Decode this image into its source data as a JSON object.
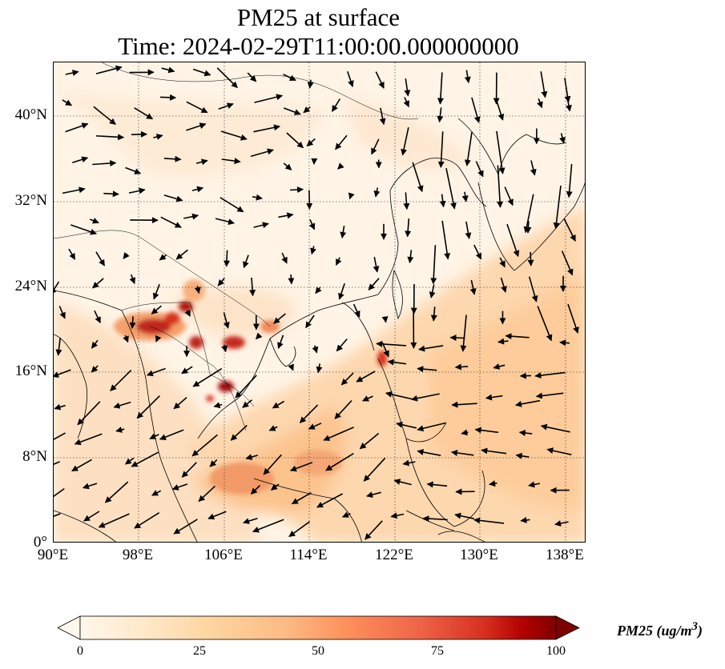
{
  "title": {
    "line1": "PM25 at surface",
    "line2": "Time: 2024-02-29T11:00:00.000000000"
  },
  "map": {
    "projection": "PlateCarree",
    "lon_range": [
      90,
      140
    ],
    "lat_range": [
      0,
      45
    ],
    "gridlines": "dotted",
    "x_ticks": [
      "90°E",
      "98°E",
      "106°E",
      "114°E",
      "122°E",
      "130°E",
      "138°E"
    ],
    "y_ticks": [
      "0°",
      "8°N",
      "16°N",
      "24°N",
      "32°N",
      "40°N"
    ],
    "field": "PM25",
    "vectors": "surface wind arrows",
    "colormap": "OrRd",
    "colors": {
      "low": "#fff7ec",
      "mid": "#fdbb84",
      "high": "#7f0000"
    }
  },
  "colorbar": {
    "label": "PM25 (ug/m^3)",
    "label_main": "PM25 (ug/m",
    "label_sup": "3",
    "label_close": ")",
    "min": 0,
    "max": 100,
    "ticks": [
      "0",
      "25",
      "50",
      "75",
      "100"
    ],
    "extend": "both"
  }
}
